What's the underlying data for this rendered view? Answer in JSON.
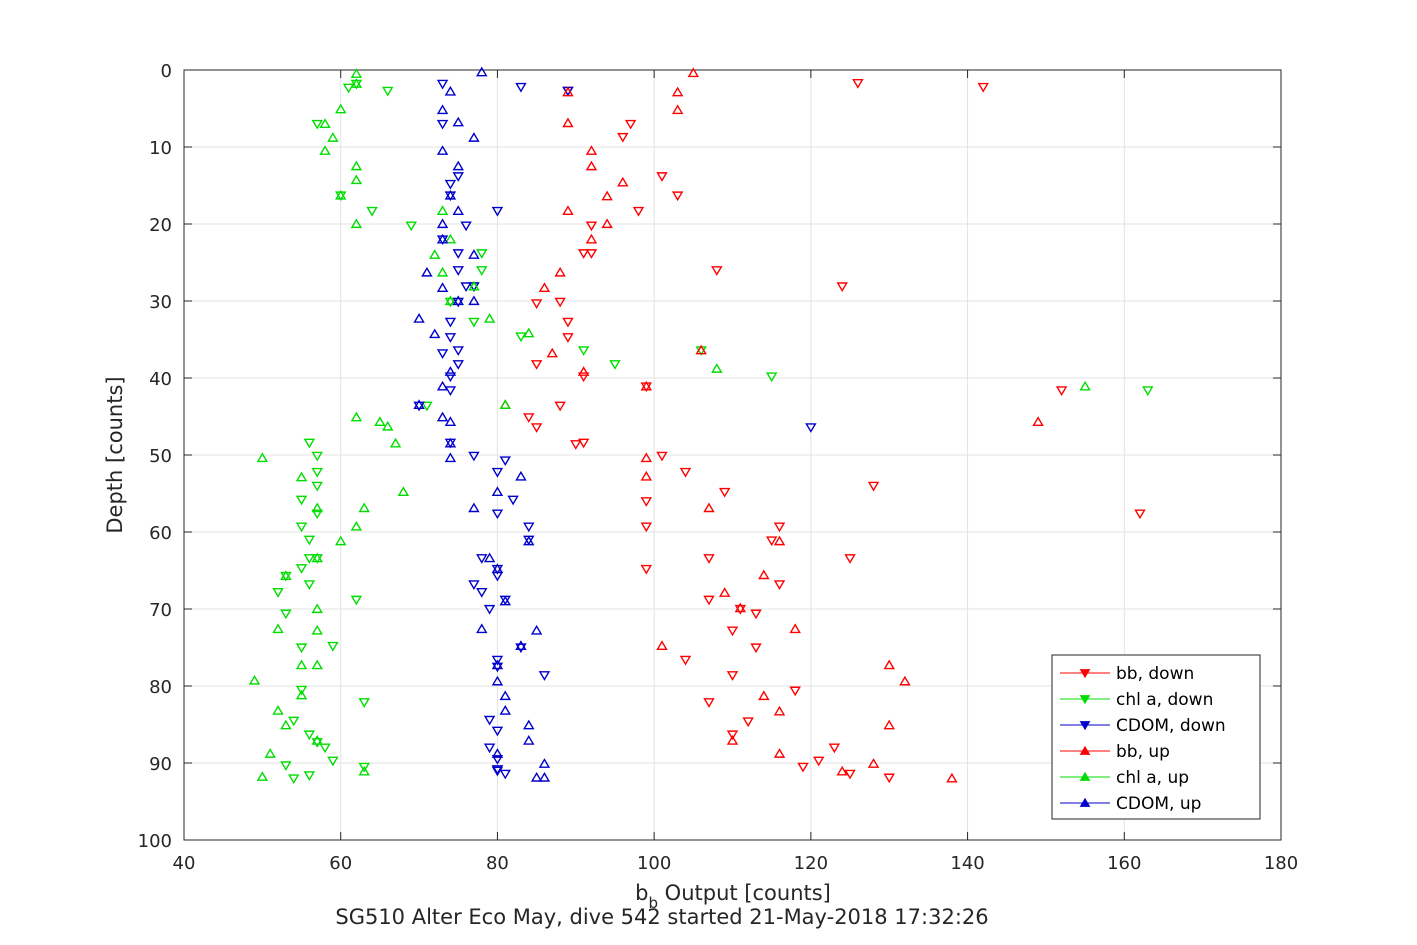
{
  "chart_data": {
    "type": "scatter",
    "xlabel_main": "b",
    "xlabel_sub": "b",
    "xlabel_rest": " Output [counts]",
    "ylabel": "Depth [counts]",
    "caption": "SG510 Alter Eco May, dive 542 started 21-May-2018 17:32:26",
    "xlim": [
      40,
      180
    ],
    "ylim": [
      0,
      100
    ],
    "y_reversed": true,
    "grid": true,
    "legend_position": "bottom-right",
    "x_ticks": [
      40,
      60,
      80,
      100,
      120,
      140,
      160,
      180
    ],
    "y_ticks": [
      0,
      10,
      20,
      30,
      40,
      50,
      60,
      70,
      80,
      90,
      100
    ],
    "x_tick_labels": [
      "40",
      "60",
      "80",
      "100",
      "120",
      "140",
      "160",
      "180"
    ],
    "y_tick_labels": [
      "0",
      "10",
      "20",
      "30",
      "40",
      "50",
      "60",
      "70",
      "80",
      "90",
      "100"
    ],
    "series": [
      {
        "name": "bb, down",
        "color": "#ff0000",
        "marker": "triangle-down",
        "points": [
          [
            126,
            1.7
          ],
          [
            142,
            2.2
          ],
          [
            89,
            2.7
          ],
          [
            97,
            7.0
          ],
          [
            96,
            8.7
          ],
          [
            101,
            13.8
          ],
          [
            103,
            16.3
          ],
          [
            98,
            18.3
          ],
          [
            92,
            20.2
          ],
          [
            91,
            23.8
          ],
          [
            92,
            23.8
          ],
          [
            108,
            26.0
          ],
          [
            124,
            28.1
          ],
          [
            88,
            30.1
          ],
          [
            85,
            30.3
          ],
          [
            89,
            32.7
          ],
          [
            89,
            34.7
          ],
          [
            85,
            38.2
          ],
          [
            91,
            39.8
          ],
          [
            152,
            41.6
          ],
          [
            99,
            41.1
          ],
          [
            88,
            43.6
          ],
          [
            84,
            45.1
          ],
          [
            85,
            46.4
          ],
          [
            91,
            48.4
          ],
          [
            90,
            48.6
          ],
          [
            101,
            50.1
          ],
          [
            104,
            52.2
          ],
          [
            128,
            54.0
          ],
          [
            109,
            54.8
          ],
          [
            99,
            56.0
          ],
          [
            162,
            57.6
          ],
          [
            116,
            59.3
          ],
          [
            99,
            59.3
          ],
          [
            115,
            61.1
          ],
          [
            125,
            63.4
          ],
          [
            107,
            63.4
          ],
          [
            99,
            64.8
          ],
          [
            116,
            66.8
          ],
          [
            107,
            68.8
          ],
          [
            111,
            70.0
          ],
          [
            113,
            70.6
          ],
          [
            110,
            72.8
          ],
          [
            113,
            75.0
          ],
          [
            104,
            76.6
          ],
          [
            110,
            78.6
          ],
          [
            118,
            80.6
          ],
          [
            107,
            82.1
          ],
          [
            112,
            84.6
          ],
          [
            110,
            86.3
          ],
          [
            123,
            88.0
          ],
          [
            121,
            89.7
          ],
          [
            119,
            90.5
          ],
          [
            125,
            91.4
          ],
          [
            130,
            91.9
          ]
        ]
      },
      {
        "name": "chl a, down",
        "color": "#00dd00",
        "marker": "triangle-down",
        "points": [
          [
            62,
            1.8
          ],
          [
            66,
            2.7
          ],
          [
            61,
            2.3
          ],
          [
            57,
            7.0
          ],
          [
            60,
            16.3
          ],
          [
            64,
            18.3
          ],
          [
            69,
            20.2
          ],
          [
            78,
            23.8
          ],
          [
            78,
            26.0
          ],
          [
            77,
            28.1
          ],
          [
            74,
            30.1
          ],
          [
            77,
            32.7
          ],
          [
            83,
            34.6
          ],
          [
            91,
            36.4
          ],
          [
            106,
            36.4
          ],
          [
            95,
            38.2
          ],
          [
            115,
            39.8
          ],
          [
            163,
            41.6
          ],
          [
            71,
            43.6
          ],
          [
            56,
            48.4
          ],
          [
            57,
            50.1
          ],
          [
            57,
            52.2
          ],
          [
            57,
            54.0
          ],
          [
            55,
            55.8
          ],
          [
            57,
            57.6
          ],
          [
            55,
            59.3
          ],
          [
            56,
            61.0
          ],
          [
            57,
            63.4
          ],
          [
            56,
            63.4
          ],
          [
            55,
            64.7
          ],
          [
            53,
            65.7
          ],
          [
            56,
            66.8
          ],
          [
            52,
            67.8
          ],
          [
            53,
            70.6
          ],
          [
            55,
            75.0
          ],
          [
            55,
            80.5
          ],
          [
            54,
            84.5
          ],
          [
            56,
            86.3
          ],
          [
            57,
            87.3
          ],
          [
            58,
            88.0
          ],
          [
            59,
            89.7
          ],
          [
            53,
            90.3
          ],
          [
            54,
            92.0
          ],
          [
            56,
            91.6
          ],
          [
            63,
            90.5
          ],
          [
            63,
            82.1
          ],
          [
            59,
            74.8
          ],
          [
            62,
            68.8
          ]
        ]
      },
      {
        "name": "CDOM, down",
        "color": "#0000cc",
        "marker": "triangle-down",
        "points": [
          [
            73,
            1.8
          ],
          [
            83,
            2.2
          ],
          [
            89,
            2.7
          ],
          [
            73,
            7.0
          ],
          [
            75,
            13.8
          ],
          [
            74,
            14.8
          ],
          [
            74,
            16.3
          ],
          [
            80,
            18.3
          ],
          [
            76,
            20.2
          ],
          [
            73,
            22.0
          ],
          [
            75,
            23.8
          ],
          [
            75,
            26.0
          ],
          [
            77,
            28.1
          ],
          [
            76,
            28.1
          ],
          [
            75,
            30.1
          ],
          [
            74,
            32.7
          ],
          [
            74,
            34.7
          ],
          [
            75,
            36.4
          ],
          [
            73,
            36.8
          ],
          [
            75,
            38.2
          ],
          [
            74,
            39.8
          ],
          [
            74,
            41.6
          ],
          [
            70,
            43.6
          ],
          [
            120,
            46.4
          ],
          [
            74,
            48.4
          ],
          [
            77,
            50.1
          ],
          [
            81,
            50.7
          ],
          [
            80,
            52.2
          ],
          [
            82,
            55.8
          ],
          [
            80,
            57.6
          ],
          [
            84,
            59.3
          ],
          [
            84,
            61.0
          ],
          [
            78,
            63.4
          ],
          [
            80,
            64.8
          ],
          [
            80,
            65.7
          ],
          [
            77,
            66.8
          ],
          [
            78,
            67.8
          ],
          [
            79,
            70.0
          ],
          [
            81,
            68.8
          ],
          [
            83,
            75.0
          ],
          [
            86,
            78.6
          ],
          [
            80,
            76.6
          ],
          [
            80,
            77.5
          ],
          [
            79,
            84.4
          ],
          [
            80,
            85.8
          ],
          [
            79,
            88.0
          ],
          [
            80,
            89.5
          ],
          [
            80,
            90.8
          ],
          [
            81,
            91.4
          ],
          [
            80,
            91.0
          ]
        ]
      },
      {
        "name": "bb, up",
        "color": "#ff0000",
        "marker": "triangle-up",
        "points": [
          [
            105,
            0.4
          ],
          [
            103,
            2.9
          ],
          [
            89,
            2.9
          ],
          [
            103,
            5.2
          ],
          [
            89,
            6.9
          ],
          [
            92,
            10.5
          ],
          [
            92,
            12.5
          ],
          [
            96,
            14.6
          ],
          [
            94,
            16.4
          ],
          [
            89,
            18.3
          ],
          [
            94,
            20.0
          ],
          [
            92,
            22.0
          ],
          [
            88,
            26.3
          ],
          [
            86,
            28.3
          ],
          [
            87,
            36.8
          ],
          [
            106,
            36.4
          ],
          [
            91,
            39.2
          ],
          [
            81,
            43.5
          ],
          [
            99,
            41.1
          ],
          [
            149,
            45.7
          ],
          [
            99,
            50.4
          ],
          [
            99,
            52.8
          ],
          [
            107,
            56.9
          ],
          [
            116,
            61.2
          ],
          [
            114,
            65.6
          ],
          [
            109,
            67.9
          ],
          [
            111,
            69.9
          ],
          [
            118,
            72.6
          ],
          [
            101,
            74.8
          ],
          [
            130,
            77.3
          ],
          [
            132,
            79.4
          ],
          [
            114,
            81.3
          ],
          [
            116,
            83.3
          ],
          [
            130,
            85.1
          ],
          [
            110,
            87.1
          ],
          [
            116,
            88.8
          ],
          [
            128,
            90.1
          ],
          [
            124,
            91.1
          ],
          [
            138,
            92.0
          ]
        ]
      },
      {
        "name": "chl a, up",
        "color": "#00dd00",
        "marker": "triangle-up",
        "points": [
          [
            62,
            0.5
          ],
          [
            62,
            1.8
          ],
          [
            60,
            5.1
          ],
          [
            58,
            7.0
          ],
          [
            59,
            8.8
          ],
          [
            58,
            10.5
          ],
          [
            62,
            12.5
          ],
          [
            62,
            14.3
          ],
          [
            60,
            16.3
          ],
          [
            62,
            20.0
          ],
          [
            73,
            18.3
          ],
          [
            74,
            22.0
          ],
          [
            72,
            24.0
          ],
          [
            73,
            26.3
          ],
          [
            77,
            28.1
          ],
          [
            74,
            30.0
          ],
          [
            79,
            32.3
          ],
          [
            84,
            34.2
          ],
          [
            108,
            38.8
          ],
          [
            155,
            41.1
          ],
          [
            81,
            43.5
          ],
          [
            62,
            45.1
          ],
          [
            66,
            46.3
          ],
          [
            65,
            45.7
          ],
          [
            67,
            48.5
          ],
          [
            50,
            50.4
          ],
          [
            55,
            52.9
          ],
          [
            57,
            56.9
          ],
          [
            68,
            54.8
          ],
          [
            63,
            56.9
          ],
          [
            62,
            59.3
          ],
          [
            60,
            61.2
          ],
          [
            57,
            63.4
          ],
          [
            53,
            65.7
          ],
          [
            57,
            70.0
          ],
          [
            57,
            72.8
          ],
          [
            52,
            72.6
          ],
          [
            55,
            77.3
          ],
          [
            57,
            77.3
          ],
          [
            49,
            79.3
          ],
          [
            55,
            81.2
          ],
          [
            52,
            83.2
          ],
          [
            53,
            85.1
          ],
          [
            57,
            87.1
          ],
          [
            51,
            88.8
          ],
          [
            50,
            91.8
          ],
          [
            63,
            91.1
          ]
        ]
      },
      {
        "name": "CDOM, up",
        "color": "#0000cc",
        "marker": "triangle-up",
        "points": [
          [
            78,
            0.3
          ],
          [
            74,
            2.8
          ],
          [
            73,
            5.2
          ],
          [
            75,
            6.8
          ],
          [
            77,
            8.8
          ],
          [
            73,
            10.5
          ],
          [
            75,
            12.5
          ],
          [
            74,
            16.3
          ],
          [
            75,
            18.3
          ],
          [
            73,
            20.0
          ],
          [
            73,
            22.0
          ],
          [
            71,
            26.3
          ],
          [
            73,
            28.3
          ],
          [
            75,
            30.0
          ],
          [
            77,
            30.0
          ],
          [
            70,
            32.3
          ],
          [
            72,
            34.3
          ],
          [
            77,
            24.0
          ],
          [
            74,
            39.2
          ],
          [
            73,
            41.1
          ],
          [
            70,
            43.5
          ],
          [
            73,
            45.1
          ],
          [
            74,
            45.7
          ],
          [
            74,
            48.5
          ],
          [
            74,
            50.4
          ],
          [
            83,
            52.8
          ],
          [
            80,
            54.8
          ],
          [
            77,
            56.9
          ],
          [
            84,
            61.2
          ],
          [
            79,
            63.4
          ],
          [
            80,
            64.8
          ],
          [
            81,
            69.0
          ],
          [
            78,
            72.6
          ],
          [
            85,
            72.8
          ],
          [
            83,
            74.8
          ],
          [
            80,
            77.3
          ],
          [
            80,
            79.4
          ],
          [
            81,
            81.3
          ],
          [
            81,
            83.2
          ],
          [
            84,
            85.1
          ],
          [
            84,
            87.1
          ],
          [
            80,
            88.8
          ],
          [
            86,
            90.1
          ],
          [
            85,
            91.9
          ],
          [
            86,
            91.9
          ]
        ]
      }
    ]
  }
}
